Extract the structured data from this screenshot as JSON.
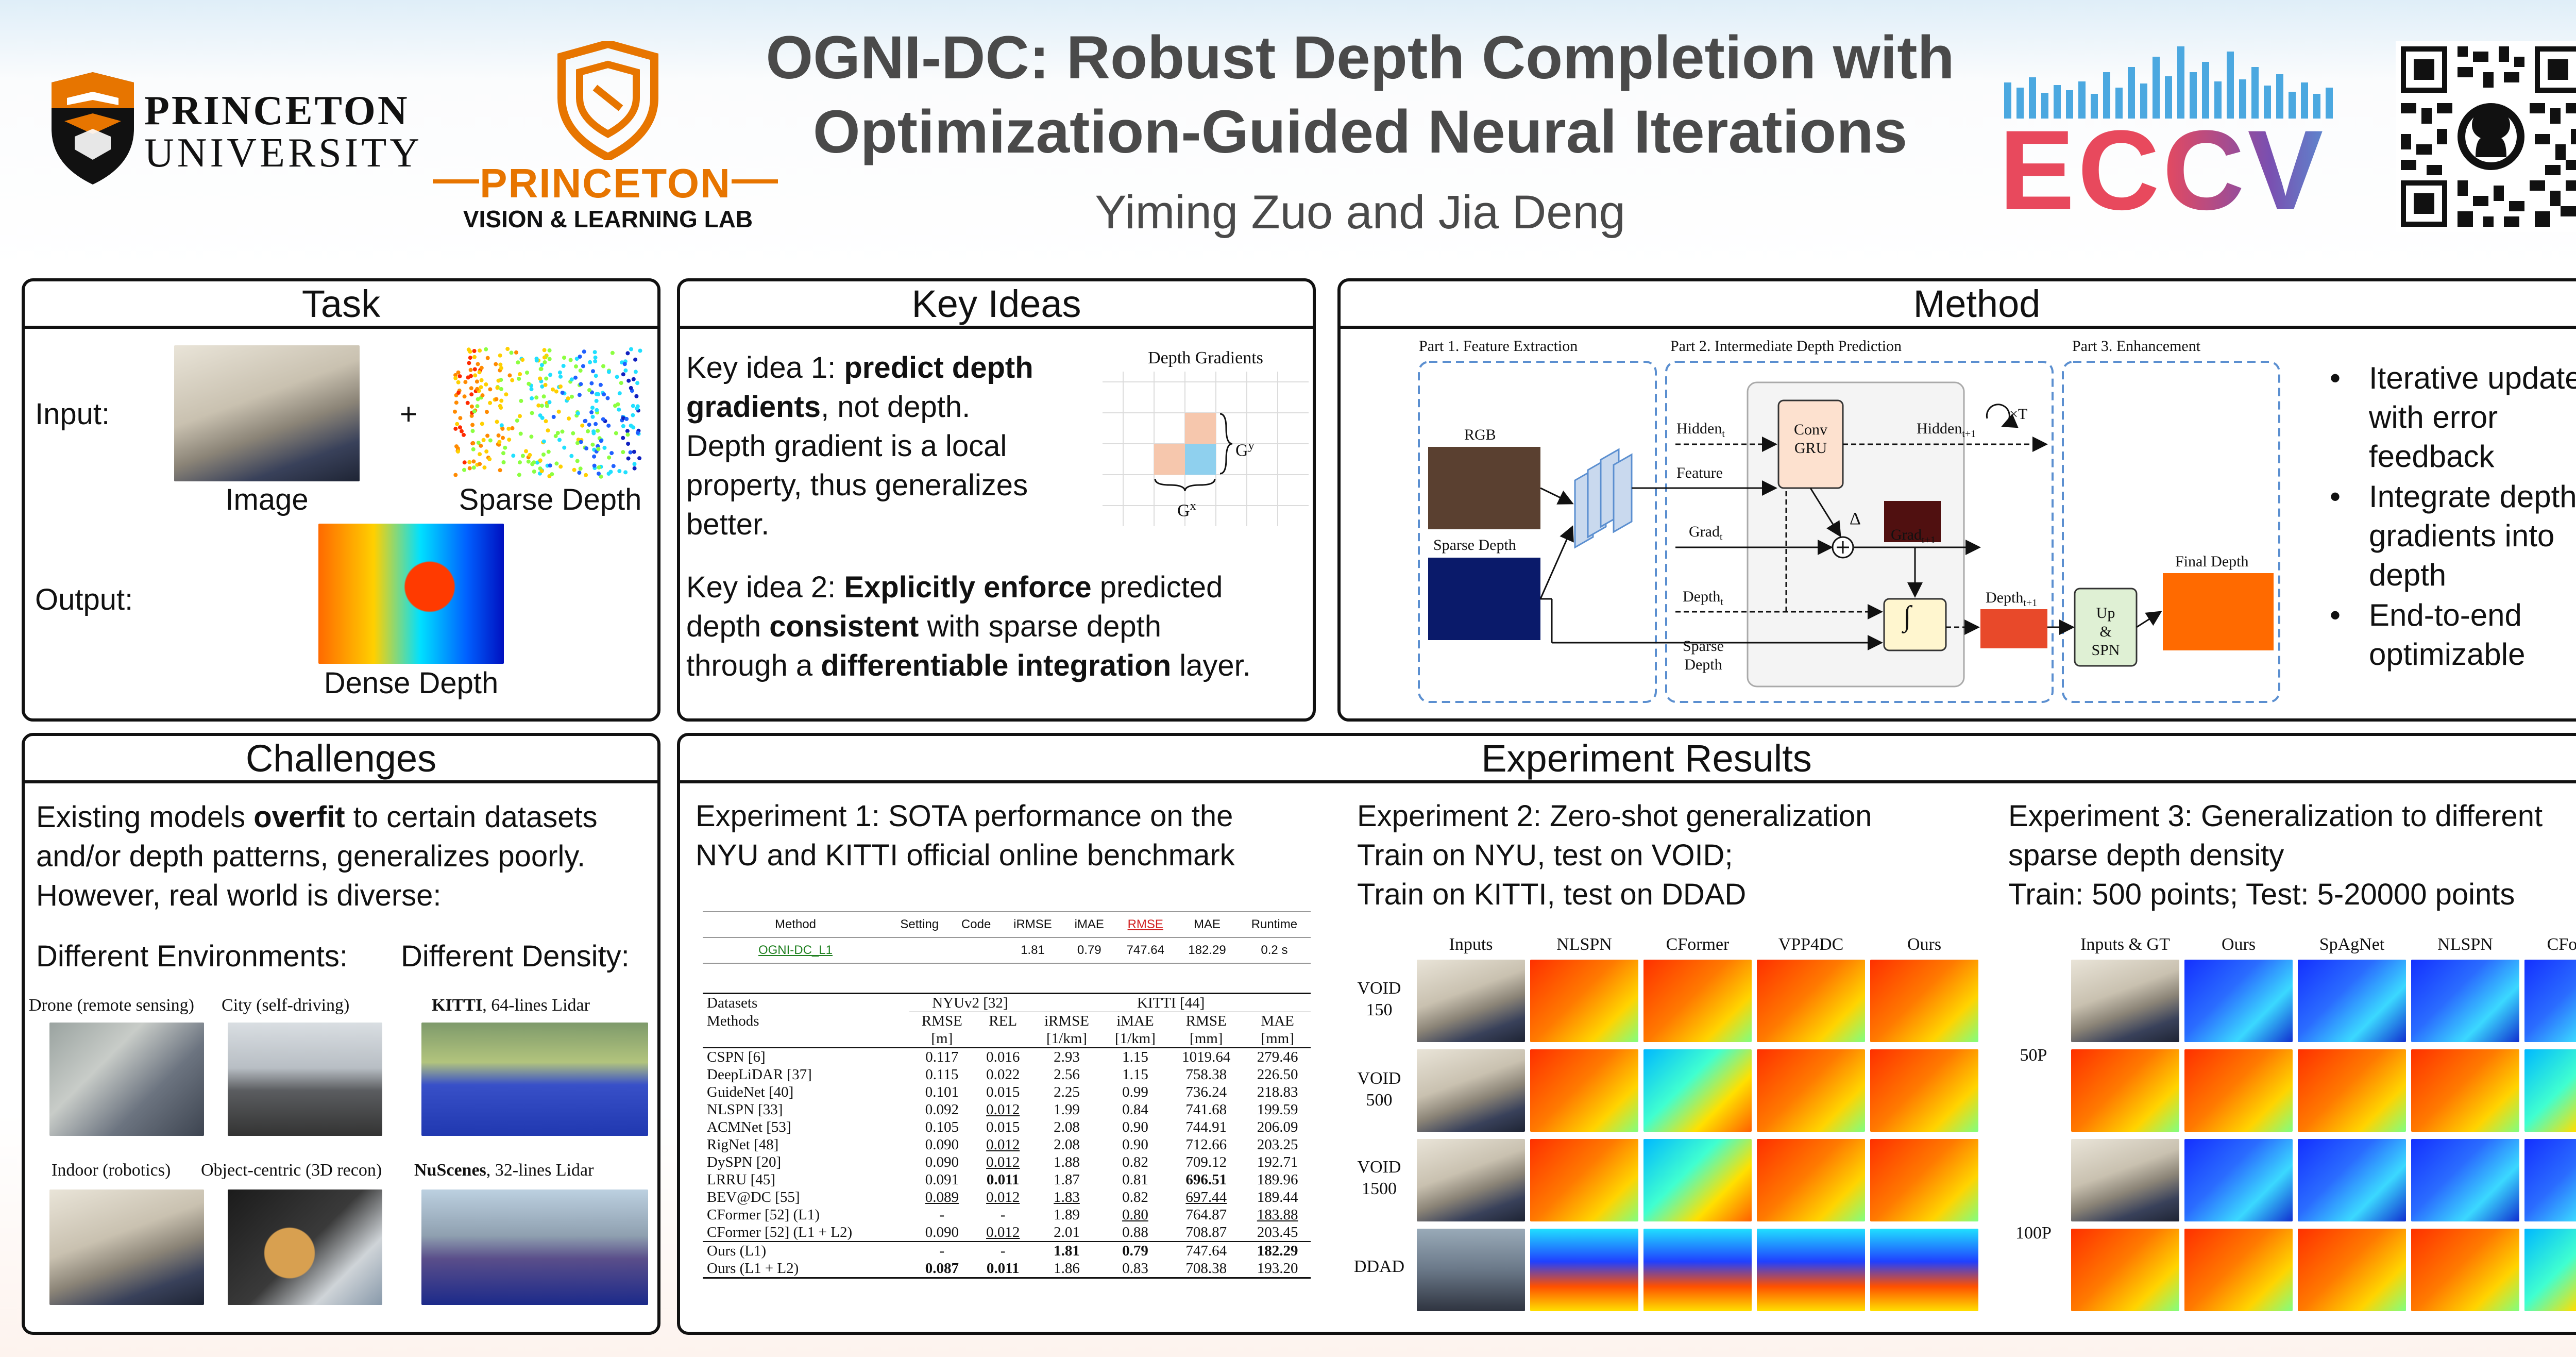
{
  "header": {
    "title_line1": "OGNI-DC: Robust Depth Completion with",
    "title_line2": "Optimization-Guided Neural Iterations",
    "authors": "Yiming Zuo and Jia Deng",
    "princeton_line1": "PRINCETON",
    "princeton_line2": "UNIVERSITY",
    "lab_line1": "PRINCETON",
    "lab_line2": "VISION & LEARNING LAB",
    "eccv": "ECCV"
  },
  "task": {
    "heading": "Task",
    "input_label": "Input:",
    "output_label": "Output:",
    "plus": "+",
    "image_caption": "Image",
    "sparse_caption": "Sparse Depth",
    "dense_caption": "Dense Depth"
  },
  "key_ideas": {
    "heading": "Key Ideas",
    "idea1_a": "Key idea 1: ",
    "idea1_b": "predict depth",
    "idea1_c": "gradients",
    "idea1_d": ", not depth.",
    "idea1_e": "Depth gradient is a local",
    "idea1_f": "property, thus generalizes",
    "idea1_g": "better.",
    "idea2_a": "Key idea 2: ",
    "idea2_b": "Explicitly enforce",
    "idea2_c": " predicted",
    "idea2_d": "depth ",
    "idea2_e": "consistent",
    "idea2_f": " with sparse depth",
    "idea2_g": "through a ",
    "idea2_h": "differentiable integration",
    "idea2_i": " layer.",
    "grid_title": "Depth Gradients",
    "gy": "G",
    "gy_sup": "y",
    "gx": "G",
    "gx_sup": "x"
  },
  "method": {
    "heading": "Method",
    "part1": "Part 1. Feature Extraction",
    "part2": "Part 2. Intermediate Depth Prediction",
    "part3": "Part 3. Enhancement",
    "rgb": "RGB",
    "sparse_depth": "Sparse Depth",
    "hidden_t": "Hidden",
    "hidden_t1": "Hidden",
    "feature": "Feature",
    "grad_t": "Grad",
    "grad_t1": "Grad",
    "depth_t": "Depth",
    "depth_t1": "Depth",
    "sparse_depth2_a": "Sparse",
    "sparse_depth2_b": "Depth",
    "conv_gru_a": "Conv",
    "conv_gru_b": "GRU",
    "delta": "Δ",
    "times_t": "×T",
    "plus_circle": "+",
    "integral": "∫",
    "up_spn_a": "Up",
    "up_spn_b": "&",
    "up_spn_c": "SPN",
    "final_depth": "Final Depth",
    "sub_t": "t",
    "sub_t1": "t+1",
    "bullets": [
      [
        "Iterative update",
        "with error",
        "feedback"
      ],
      [
        "Integrate depth",
        "gradients into",
        "depth"
      ],
      [
        "End-to-end",
        "optimizable"
      ]
    ]
  },
  "challenges": {
    "heading": "Challenges",
    "p1_a": "Existing models ",
    "p1_b": "overfit",
    "p1_c": " to certain datasets",
    "p2": "and/or depth patterns, generalizes poorly.",
    "p3": "However, real world is diverse:",
    "env_label": "Different Environments:",
    "density_label": "Different Density:",
    "drone": "Drone (remote sensing)",
    "city": "City (self-driving)",
    "indoor": "Indoor (robotics)",
    "object": "Object-centric (3D recon)",
    "kitti_b": "KITTI",
    "kitti_r": ", 64-lines Lidar",
    "nusc_b": "NuScenes",
    "nusc_r": ", 32-lines Lidar"
  },
  "results": {
    "heading": "Experiment Results",
    "exp1_l1": "Experiment 1: SOTA performance on the",
    "exp1_l2": "NYU and KITTI official online benchmark",
    "exp2_l1": "Experiment 2: Zero-shot generalization",
    "exp2_l2": "Train on NYU, test on VOID;",
    "exp2_l3": "Train on KITTI, test on DDAD",
    "exp3_l1": "Experiment 3: Generalization to different",
    "exp3_l2": "sparse depth density",
    "exp3_l3": "Train: 500 points; Test: 5-20000 points",
    "leader_headers": [
      "Method",
      "Setting",
      "Code",
      "iRMSE",
      "iMAE",
      "RMSE",
      "MAE",
      "Runtime"
    ],
    "leader_row": [
      "OGNI-DC_L1",
      "",
      "",
      "1.81",
      "0.79",
      "747.64",
      "182.29",
      "0.2 s"
    ],
    "table_top": [
      "Datasets",
      "NYUv2 [32]",
      "KITTI [44]"
    ],
    "table_header1": [
      "Methods",
      "RMSE",
      "REL",
      "iRMSE",
      "iMAE",
      "RMSE",
      "MAE"
    ],
    "table_header2": [
      "",
      "[m]",
      "",
      "[1/km]",
      "[1/km]",
      "[mm]",
      "[mm]"
    ],
    "table_rows": [
      [
        "CSPN [6]",
        "0.117",
        "0.016",
        "2.93",
        "1.15",
        "1019.64",
        "279.46"
      ],
      [
        "DeepLiDAR [37]",
        "0.115",
        "0.022",
        "2.56",
        "1.15",
        "758.38",
        "226.50"
      ],
      [
        "GuideNet [40]",
        "0.101",
        "0.015",
        "2.25",
        "0.99",
        "736.24",
        "218.83"
      ],
      [
        "NLSPN [33]",
        "0.092",
        "0.012",
        "1.99",
        "0.84",
        "741.68",
        "199.59"
      ],
      [
        "ACMNet [53]",
        "0.105",
        "0.015",
        "2.08",
        "0.90",
        "744.91",
        "206.09"
      ],
      [
        "RigNet [48]",
        "0.090",
        "0.012",
        "2.08",
        "0.90",
        "712.66",
        "203.25"
      ],
      [
        "DySPN [20]",
        "0.090",
        "0.012",
        "1.88",
        "0.82",
        "709.12",
        "192.71"
      ],
      [
        "LRRU [45]",
        "0.091",
        "0.011",
        "1.87",
        "0.81",
        "696.51",
        "189.96"
      ],
      [
        "BEV@DC [55]",
        "0.089",
        "0.012",
        "1.83",
        "0.82",
        "697.44",
        "189.44"
      ],
      [
        "CFormer [52] (L1)",
        "-",
        "-",
        "1.89",
        "0.80",
        "764.87",
        "183.88"
      ],
      [
        "CFormer [52] (L1 + L2)",
        "0.090",
        "0.012",
        "2.01",
        "0.88",
        "708.87",
        "203.45"
      ],
      [
        "Ours (L1)",
        "-",
        "-",
        "1.81",
        "0.79",
        "747.64",
        "182.29"
      ],
      [
        "Ours (L1 + L2)",
        "0.087",
        "0.011",
        "1.86",
        "0.83",
        "708.38",
        "193.20"
      ]
    ],
    "exp2_cols": [
      "Inputs",
      "NLSPN",
      "CFormer",
      "VPP4DC",
      "Ours"
    ],
    "exp2_rows": [
      [
        "VOID",
        "150"
      ],
      [
        "VOID",
        "500"
      ],
      [
        "VOID",
        "1500"
      ],
      [
        "DDAD",
        ""
      ]
    ],
    "exp3_cols": [
      "Inputs & GT",
      "Ours",
      "SpAgNet",
      "NLSPN",
      "CFormer"
    ],
    "exp3_rows": [
      "50P",
      "100P"
    ]
  },
  "colors": {
    "border": "#111111",
    "title": "#4a4a4a",
    "princeton_orange": "#e77500",
    "eccv_red": "#e8495d",
    "eccv_blue": "#4ba8e0",
    "eccv_purple": "#7a4fb0"
  }
}
